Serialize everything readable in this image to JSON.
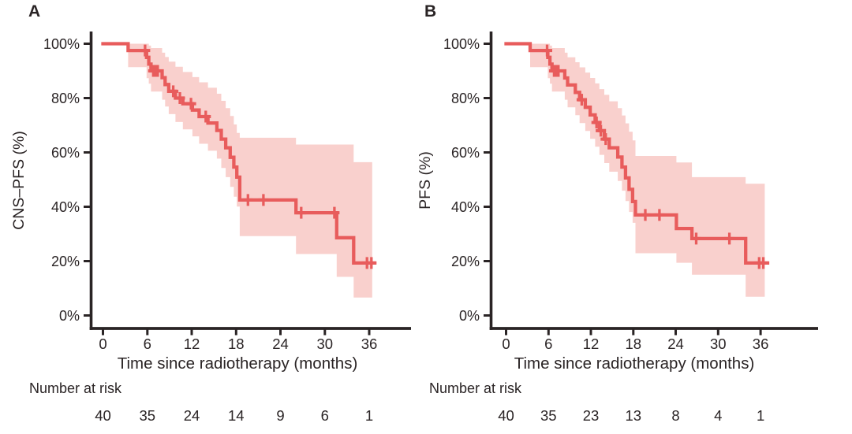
{
  "figure": {
    "kind": "kaplan-meier-survival-figure",
    "background": "#ffffff"
  },
  "colors": {
    "curve": "#e85c5c",
    "ci_band": "#f9d0cd",
    "axis": "#2a2425"
  },
  "chart_data": [
    {
      "type": "line",
      "variant": "kaplan_meier_step_with_confidence_band",
      "panel_label": "A",
      "ylabel": "CNS–PFS (%)",
      "xlabel": "Time since radiotherapy (months)",
      "xlim": [
        0,
        38
      ],
      "ylim": [
        0,
        100
      ],
      "grid": false,
      "legend": "none",
      "xticks": [
        0,
        6,
        12,
        18,
        24,
        30,
        36
      ],
      "xtick_labels": [
        "0",
        "6",
        "12",
        "18",
        "24",
        "30",
        "36"
      ],
      "yticks": [
        0,
        20,
        40,
        60,
        80,
        100
      ],
      "ytick_labels": [
        "0%",
        "20%",
        "40%",
        "60%",
        "80%",
        "100%"
      ],
      "series": [
        {
          "name": "CNS-PFS",
          "steps_time_pct": [
            [
              0,
              100
            ],
            [
              3.4,
              97.5
            ],
            [
              5.9,
              95
            ],
            [
              6.2,
              92.5
            ],
            [
              6.5,
              90
            ],
            [
              8.0,
              87.5
            ],
            [
              8.4,
              85
            ],
            [
              8.9,
              82.5
            ],
            [
              9.8,
              80
            ],
            [
              10.8,
              77.9
            ],
            [
              12.1,
              75.6
            ],
            [
              13.0,
              73.2
            ],
            [
              14.2,
              70.8
            ],
            [
              15.4,
              68.1
            ],
            [
              16.0,
              64.9
            ],
            [
              16.6,
              61.7
            ],
            [
              17.2,
              58.2
            ],
            [
              17.7,
              54.6
            ],
            [
              18.1,
              50.9
            ],
            [
              18.5,
              42.5
            ],
            [
              26.1,
              37.8
            ],
            [
              31.6,
              28.6
            ],
            [
              33.9,
              19.3
            ]
          ],
          "end_time": 36.7,
          "censor_marks_time_pct": [
            [
              5.7,
              97.5
            ],
            [
              6.8,
              90
            ],
            [
              7.1,
              90
            ],
            [
              7.4,
              90
            ],
            [
              9.5,
              82.5
            ],
            [
              10.4,
              80
            ],
            [
              11.9,
              77.9
            ],
            [
              13.9,
              73.2
            ],
            [
              19.6,
              42.5
            ],
            [
              21.7,
              42.5
            ],
            [
              26.8,
              37.8
            ],
            [
              31.3,
              37.8
            ],
            [
              35.7,
              19.3
            ],
            [
              36.3,
              19.3
            ]
          ],
          "ci_upper_time_pct": [
            [
              0,
              100
            ],
            [
              5.9,
              100
            ],
            [
              6.2,
              99.3
            ],
            [
              6.5,
              98.4
            ],
            [
              8.0,
              96.7
            ],
            [
              8.4,
              95.1
            ],
            [
              8.9,
              93.4
            ],
            [
              9.8,
              91.5
            ],
            [
              10.8,
              89.6
            ],
            [
              12.1,
              87.7
            ],
            [
              13.0,
              85.8
            ],
            [
              14.2,
              83.8
            ],
            [
              15.4,
              81.6
            ],
            [
              16.0,
              79.0
            ],
            [
              16.6,
              76.3
            ],
            [
              17.2,
              73.4
            ],
            [
              17.7,
              70.3
            ],
            [
              18.1,
              67.2
            ],
            [
              18.5,
              65.4
            ],
            [
              26.1,
              62.9
            ],
            [
              33.9,
              56.4
            ]
          ],
          "ci_lower_time_pct": [
            [
              0,
              100
            ],
            [
              3.4,
              91.4
            ],
            [
              5.9,
              87.3
            ],
            [
              6.2,
              85.3
            ],
            [
              6.5,
              82.4
            ],
            [
              8.0,
              79.4
            ],
            [
              8.4,
              76.9
            ],
            [
              8.9,
              74.1
            ],
            [
              9.8,
              71.2
            ],
            [
              10.8,
              68.5
            ],
            [
              12.1,
              65.9
            ],
            [
              13.0,
              63.2
            ],
            [
              14.2,
              60.6
            ],
            [
              15.4,
              57.7
            ],
            [
              16.0,
              54.3
            ],
            [
              16.6,
              50.9
            ],
            [
              17.2,
              47.3
            ],
            [
              17.7,
              43.7
            ],
            [
              18.1,
              40.1
            ],
            [
              18.5,
              29.2
            ],
            [
              26.1,
              22.6
            ],
            [
              31.6,
              14.2
            ],
            [
              33.9,
              6.6
            ]
          ],
          "ci_end_time": 36.4
        }
      ],
      "number_at_risk": {
        "label": "Number at risk",
        "times": [
          0,
          6,
          12,
          18,
          24,
          30,
          36
        ],
        "values": [
          "40",
          "35",
          "24",
          "14",
          "9",
          "6",
          "1"
        ]
      }
    },
    {
      "type": "line",
      "variant": "kaplan_meier_step_with_confidence_band",
      "panel_label": "B",
      "ylabel": "PFS (%)",
      "xlabel": "Time since radiotherapy (months)",
      "xlim": [
        0,
        38
      ],
      "ylim": [
        0,
        100
      ],
      "grid": false,
      "legend": "none",
      "xticks": [
        0,
        6,
        12,
        18,
        24,
        30,
        36
      ],
      "xtick_labels": [
        "0",
        "6",
        "12",
        "18",
        "24",
        "30",
        "36"
      ],
      "yticks": [
        0,
        20,
        40,
        60,
        80,
        100
      ],
      "ytick_labels": [
        "0%",
        "20%",
        "40%",
        "60%",
        "80%",
        "100%"
      ],
      "series": [
        {
          "name": "PFS",
          "steps_time_pct": [
            [
              0,
              100
            ],
            [
              3.4,
              97.5
            ],
            [
              5.9,
              95
            ],
            [
              6.2,
              92.5
            ],
            [
              6.5,
              90
            ],
            [
              8.3,
              87.4
            ],
            [
              8.7,
              84.8
            ],
            [
              9.8,
              82.1
            ],
            [
              10.4,
              79.4
            ],
            [
              11.2,
              76.6
            ],
            [
              11.9,
              73.8
            ],
            [
              12.6,
              71.0
            ],
            [
              13.2,
              68.0
            ],
            [
              13.9,
              64.9
            ],
            [
              14.6,
              61.7
            ],
            [
              15.8,
              58.3
            ],
            [
              16.4,
              54.6
            ],
            [
              16.9,
              50.6
            ],
            [
              17.4,
              46.4
            ],
            [
              17.9,
              41.9
            ],
            [
              18.3,
              37.0
            ],
            [
              24.1,
              32.0
            ],
            [
              26.3,
              28.3
            ],
            [
              33.9,
              19.3
            ]
          ],
          "end_time": 37.0,
          "censor_marks_time_pct": [
            [
              5.8,
              97.5
            ],
            [
              6.8,
              90
            ],
            [
              7.1,
              90
            ],
            [
              7.4,
              90
            ],
            [
              10.7,
              79.4
            ],
            [
              12.8,
              71.0
            ],
            [
              13.4,
              68.0
            ],
            [
              14.1,
              64.9
            ],
            [
              19.7,
              37.0
            ],
            [
              21.7,
              37.0
            ],
            [
              26.9,
              28.3
            ],
            [
              31.6,
              28.3
            ],
            [
              35.8,
              19.3
            ],
            [
              36.4,
              19.3
            ]
          ],
          "ci_upper_time_pct": [
            [
              0,
              100
            ],
            [
              5.9,
              100
            ],
            [
              6.2,
              99.3
            ],
            [
              6.5,
              98.4
            ],
            [
              8.3,
              96.7
            ],
            [
              8.7,
              95.0
            ],
            [
              9.8,
              93.2
            ],
            [
              10.4,
              91.3
            ],
            [
              11.2,
              89.4
            ],
            [
              11.9,
              87.4
            ],
            [
              12.6,
              85.4
            ],
            [
              13.2,
              83.3
            ],
            [
              13.9,
              81.2
            ],
            [
              14.6,
              78.8
            ],
            [
              15.8,
              76.3
            ],
            [
              16.4,
              73.6
            ],
            [
              16.9,
              70.7
            ],
            [
              17.4,
              67.6
            ],
            [
              17.9,
              64.4
            ],
            [
              18.3,
              58.7
            ],
            [
              24.1,
              56.3
            ],
            [
              26.3,
              50.9
            ],
            [
              33.9,
              48.5
            ]
          ],
          "ci_lower_time_pct": [
            [
              0,
              100
            ],
            [
              3.4,
              91.4
            ],
            [
              5.9,
              87.3
            ],
            [
              6.2,
              85.3
            ],
            [
              6.5,
              82.4
            ],
            [
              8.3,
              79.4
            ],
            [
              8.7,
              76.6
            ],
            [
              9.8,
              73.7
            ],
            [
              10.4,
              70.8
            ],
            [
              11.2,
              67.9
            ],
            [
              11.9,
              65.0
            ],
            [
              12.6,
              62.1
            ],
            [
              13.2,
              59.1
            ],
            [
              13.9,
              56.1
            ],
            [
              14.6,
              52.9
            ],
            [
              15.8,
              49.5
            ],
            [
              16.4,
              45.9
            ],
            [
              16.9,
              42.1
            ],
            [
              17.4,
              38.1
            ],
            [
              17.9,
              34.1
            ],
            [
              18.3,
              22.9
            ],
            [
              24.1,
              19.4
            ],
            [
              26.3,
              15.0
            ],
            [
              33.9,
              6.9
            ]
          ],
          "ci_end_time": 36.6
        }
      ],
      "number_at_risk": {
        "label": "Number at risk",
        "times": [
          0,
          6,
          12,
          18,
          24,
          30,
          36
        ],
        "values": [
          "40",
          "35",
          "23",
          "13",
          "8",
          "4",
          "1"
        ]
      }
    }
  ]
}
